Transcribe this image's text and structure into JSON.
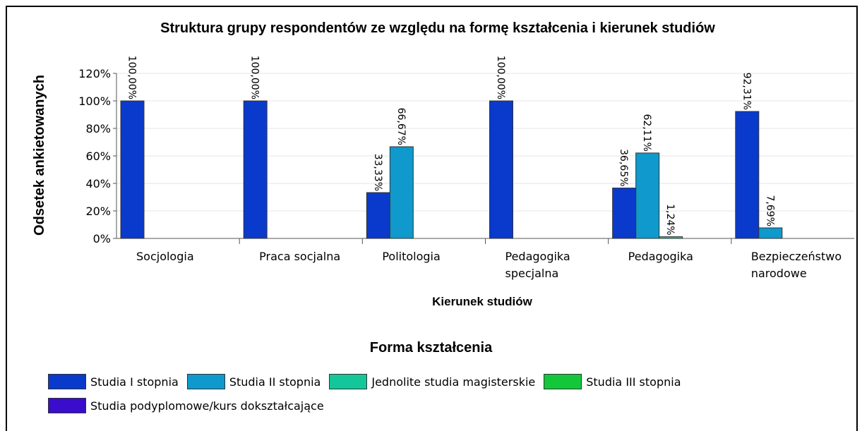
{
  "chart_data": {
    "type": "bar",
    "title": "Struktura grupy respondentów ze względu na formę kształcenia i kierunek studiów",
    "x_label": "Kierunek studiów",
    "y_label": "Odsetek ankietowanych",
    "legend_title": "Forma kształcenia",
    "categories": [
      "Socjologia",
      "Praca socjalna",
      "Politologia",
      "Pedagogika specjalna",
      "Pedagogika",
      "Bezpieczeństwo narodowe"
    ],
    "series": [
      {
        "name": "Studia I stopnia",
        "color": "#0a3acb",
        "values": [
          100,
          100,
          33.33,
          100,
          36.65,
          92.31
        ],
        "value_labels": [
          "100,00%",
          "100,00%",
          "33,33%",
          "100,00%",
          "36,65%",
          "92,31%"
        ]
      },
      {
        "name": "Studia II stopnia",
        "color": "#0f99cc",
        "values": [
          0,
          0,
          66.67,
          0,
          62.11,
          7.69
        ],
        "value_labels": [
          null,
          null,
          "66,67%",
          null,
          "62,11%",
          "7,69%"
        ]
      },
      {
        "name": "Jednolite studia magisterskie",
        "color": "#13c79a",
        "values": [
          0,
          0,
          0,
          0,
          1.24,
          0
        ],
        "value_labels": [
          null,
          null,
          null,
          null,
          "1,24%",
          null
        ]
      },
      {
        "name": "Studia III stopnia",
        "color": "#12c83a",
        "values": [
          0,
          0,
          0,
          0,
          0,
          0
        ],
        "value_labels": [
          null,
          null,
          null,
          null,
          null,
          null
        ]
      },
      {
        "name": "Studia podyplomowe/kurs dokształcające",
        "color": "#3a0ccb",
        "values": [
          0,
          0,
          0,
          0,
          0,
          0
        ],
        "value_labels": [
          null,
          null,
          null,
          null,
          null,
          null
        ]
      }
    ],
    "ylim": [
      0,
      120
    ],
    "yticks": [
      {
        "value": 0,
        "label": "0%"
      },
      {
        "value": 20,
        "label": "20%"
      },
      {
        "value": 40,
        "label": "40%"
      },
      {
        "value": 60,
        "label": "60%"
      },
      {
        "value": 80,
        "label": "80%"
      },
      {
        "value": 100,
        "label": "100%"
      },
      {
        "value": 120,
        "label": "120%"
      }
    ],
    "grid": true
  }
}
